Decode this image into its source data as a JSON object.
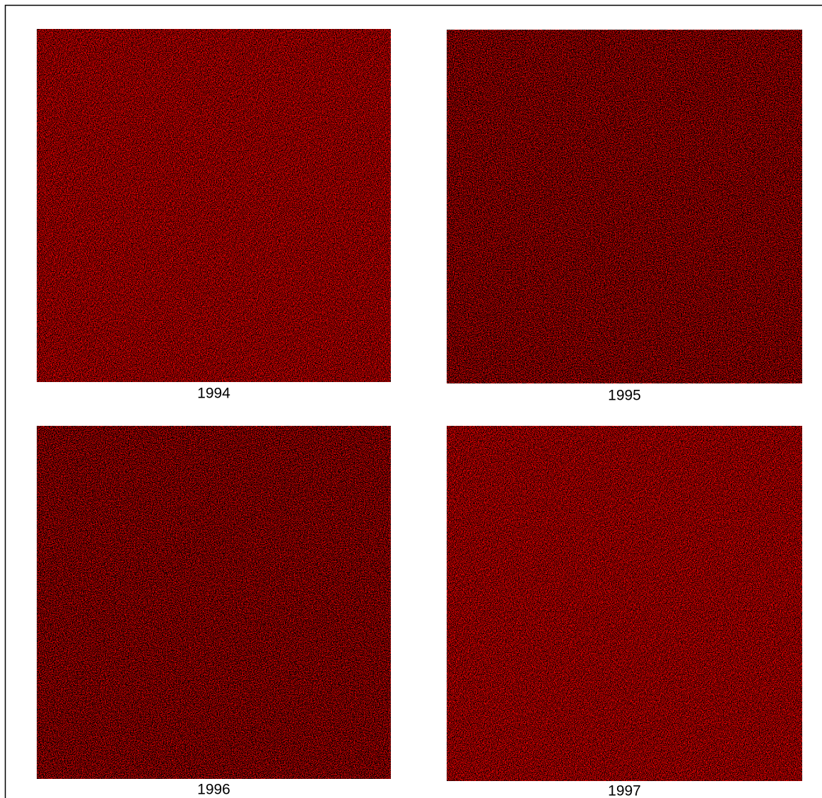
{
  "panels": [
    {
      "label": "1994"
    },
    {
      "label": "1995"
    },
    {
      "label": "1996"
    },
    {
      "label": "1997"
    }
  ]
}
